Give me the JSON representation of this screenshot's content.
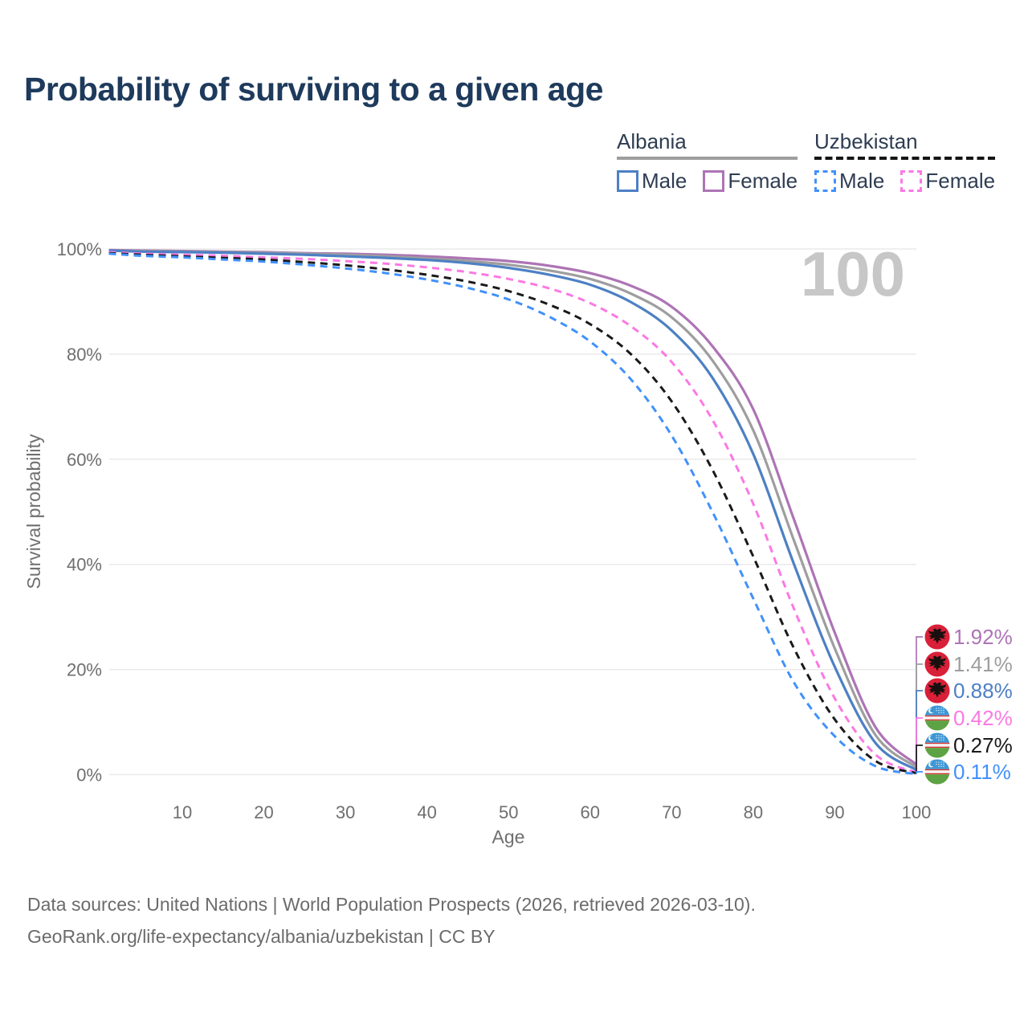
{
  "title": "Probability of surviving to a given age",
  "watermark_age": "100",
  "legend": {
    "groups": [
      {
        "country": "Albania",
        "line_style": "solid",
        "underline_color": "#9e9e9e",
        "items": [
          {
            "label": "Male",
            "color": "#4d80c4"
          },
          {
            "label": "Female",
            "color": "#ad74b5"
          }
        ]
      },
      {
        "country": "Uzbekistan",
        "line_style": "dashed",
        "underline_color": "#151515",
        "items": [
          {
            "label": "Male",
            "color": "#4191fb"
          },
          {
            "label": "Female",
            "color": "#fb79e3"
          }
        ]
      }
    ]
  },
  "chart_data": {
    "type": "line",
    "title": "Probability of surviving to a given age",
    "xlabel": "Age",
    "ylabel": "Survival probability",
    "xlim": [
      1,
      100
    ],
    "ylim": [
      0,
      100
    ],
    "grid": "horizontal",
    "x_ticks": [
      "10",
      "20",
      "30",
      "40",
      "50",
      "60",
      "70",
      "80",
      "90",
      "100"
    ],
    "x_tick_values": [
      10,
      20,
      30,
      40,
      50,
      60,
      70,
      80,
      90,
      100
    ],
    "y_ticks": [
      "0%",
      "20%",
      "40%",
      "60%",
      "80%",
      "100%"
    ],
    "y_tick_values": [
      0,
      20,
      40,
      60,
      80,
      100
    ],
    "x": [
      1,
      5,
      10,
      15,
      20,
      25,
      30,
      35,
      40,
      45,
      50,
      55,
      60,
      65,
      70,
      75,
      80,
      85,
      90,
      95,
      100
    ],
    "series": [
      {
        "name": "Albania Female",
        "country": "Albania",
        "sex": "Female",
        "color": "#ad74b5",
        "dashed": false,
        "values": [
          99.8,
          99.7,
          99.6,
          99.5,
          99.4,
          99.2,
          99.1,
          98.9,
          98.6,
          98.2,
          97.7,
          96.8,
          95.4,
          93.0,
          89.0,
          81.5,
          69.5,
          48.5,
          27.0,
          9.0,
          1.92
        ],
        "end_label": "1.92%",
        "flag": "albania"
      },
      {
        "name": "Albania (both sexes)",
        "country": "Albania",
        "sex": "Both",
        "color": "#9e9e9e",
        "dashed": false,
        "values": [
          99.7,
          99.6,
          99.5,
          99.4,
          99.3,
          99.1,
          98.9,
          98.6,
          98.2,
          97.7,
          97.0,
          95.9,
          94.3,
          91.5,
          87.0,
          78.8,
          65.5,
          44.5,
          24.0,
          7.5,
          1.41
        ],
        "end_label": "1.41%",
        "flag": "albania"
      },
      {
        "name": "Albania Male",
        "country": "Albania",
        "sex": "Male",
        "color": "#4d80c4",
        "dashed": false,
        "values": [
          99.7,
          99.5,
          99.4,
          99.3,
          99.1,
          98.9,
          98.6,
          98.3,
          97.9,
          97.3,
          96.4,
          95.1,
          93.2,
          89.9,
          84.5,
          75.5,
          61.0,
          40.0,
          20.5,
          6.0,
          0.88
        ],
        "end_label": "0.88%",
        "flag": "albania"
      },
      {
        "name": "Uzbekistan Female",
        "country": "Uzbekistan",
        "sex": "Female",
        "color": "#fb79e3",
        "dashed": true,
        "values": [
          99.4,
          99.1,
          98.9,
          98.7,
          98.4,
          98.1,
          97.7,
          97.2,
          96.5,
          95.6,
          94.3,
          92.5,
          89.7,
          85.3,
          78.5,
          67.5,
          51.5,
          31.5,
          14.5,
          3.8,
          0.42
        ],
        "end_label": "0.42%",
        "flag": "uzbekistan"
      },
      {
        "name": "Uzbekistan (both sexes)",
        "country": "Uzbekistan",
        "sex": "Both",
        "color": "#1a1a1a",
        "dashed": true,
        "values": [
          99.2,
          98.9,
          98.6,
          98.3,
          98.0,
          97.5,
          96.9,
          96.1,
          95.1,
          93.8,
          92.0,
          89.4,
          85.7,
          80.0,
          71.0,
          58.0,
          41.5,
          24.0,
          10.5,
          2.6,
          0.27
        ],
        "end_label": "0.27%",
        "flag": "uzbekistan"
      },
      {
        "name": "Uzbekistan Male",
        "country": "Uzbekistan",
        "sex": "Male",
        "color": "#4191fb",
        "dashed": true,
        "values": [
          99.1,
          98.7,
          98.4,
          98.0,
          97.6,
          97.0,
          96.3,
          95.4,
          94.2,
          92.6,
          90.4,
          87.1,
          82.4,
          75.2,
          64.5,
          50.0,
          33.5,
          17.5,
          7.3,
          1.6,
          0.11
        ],
        "end_label": "0.11%",
        "flag": "uzbekistan"
      }
    ]
  },
  "footer": {
    "line1": "Data sources: United Nations | World Population Prospects (2026, retrieved 2026-03-10).",
    "line2": "GeoRank.org/life-expectancy/albania/uzbekistan | CC BY"
  }
}
